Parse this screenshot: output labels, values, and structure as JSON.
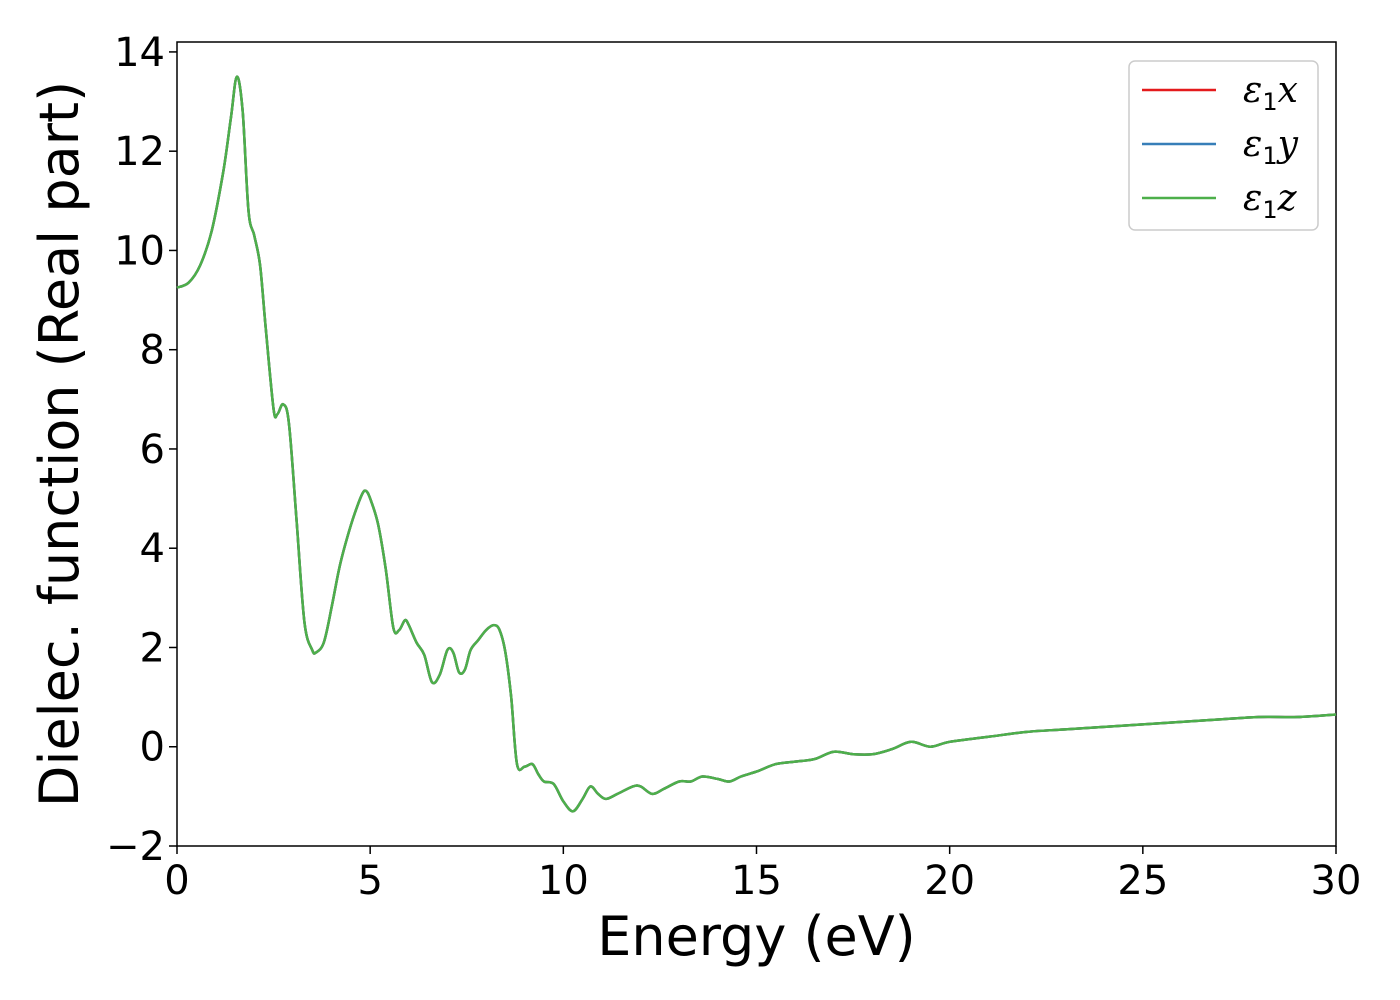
{
  "chart_data": {
    "type": "line",
    "xlabel": "Energy (eV)",
    "ylabel": "Dielec. function (Real part)",
    "xlim": [
      0,
      30
    ],
    "ylim": [
      -2,
      14.2
    ],
    "xticks": [
      0,
      5,
      10,
      15,
      20,
      25,
      30
    ],
    "yticks": [
      -2,
      0,
      2,
      4,
      6,
      8,
      10,
      12,
      14
    ],
    "ytick_labels": [
      "−2",
      "0",
      "2",
      "4",
      "6",
      "8",
      "10",
      "12",
      "14"
    ],
    "grid": false,
    "legend_position": "top-right",
    "series": [
      {
        "name": "ε₁x",
        "legend_base": "ε",
        "legend_sub": "1",
        "legend_var": "x",
        "color": "#e41a1c",
        "ref": "shared"
      },
      {
        "name": "ε₁y",
        "legend_base": "ε",
        "legend_sub": "1",
        "legend_var": "y",
        "color": "#377eb8",
        "ref": "shared"
      },
      {
        "name": "ε₁z",
        "legend_base": "ε",
        "legend_sub": "1",
        "legend_var": "z",
        "color": "#4daf4a",
        "ref": "shared"
      }
    ],
    "shared_values": {
      "x": [
        0,
        0.3,
        0.6,
        0.9,
        1.2,
        1.4,
        1.55,
        1.7,
        1.85,
        2.0,
        2.15,
        2.3,
        2.5,
        2.6,
        2.75,
        2.9,
        3.1,
        3.3,
        3.5,
        3.6,
        3.8,
        4.0,
        4.2,
        4.4,
        4.6,
        4.8,
        4.9,
        5.0,
        5.2,
        5.4,
        5.6,
        5.75,
        5.9,
        6.0,
        6.2,
        6.4,
        6.6,
        6.8,
        7.0,
        7.15,
        7.3,
        7.45,
        7.6,
        7.8,
        8.0,
        8.2,
        8.35,
        8.5,
        8.65,
        8.8,
        9.0,
        9.2,
        9.35,
        9.5,
        9.75,
        10.0,
        10.25,
        10.5,
        10.7,
        10.9,
        11.1,
        11.4,
        11.8,
        12.0,
        12.3,
        12.6,
        13.0,
        13.3,
        13.6,
        14.0,
        14.3,
        14.6,
        15.0,
        15.5,
        16.0,
        16.5,
        17.0,
        17.5,
        18.0,
        18.5,
        19.0,
        19.5,
        20.0,
        21.0,
        22.0,
        23.0,
        24.0,
        25.0,
        26.0,
        27.0,
        28.0,
        29.0,
        30.0
      ],
      "y": [
        9.25,
        9.35,
        9.7,
        10.4,
        11.6,
        12.7,
        13.5,
        12.8,
        10.8,
        10.3,
        9.7,
        8.4,
        6.8,
        6.7,
        6.9,
        6.5,
        4.5,
        2.5,
        1.95,
        1.9,
        2.1,
        2.8,
        3.6,
        4.2,
        4.7,
        5.1,
        5.15,
        5.0,
        4.5,
        3.6,
        2.4,
        2.35,
        2.55,
        2.45,
        2.1,
        1.85,
        1.3,
        1.45,
        1.95,
        1.9,
        1.5,
        1.55,
        1.95,
        2.15,
        2.35,
        2.45,
        2.35,
        1.9,
        1.0,
        -0.35,
        -0.4,
        -0.35,
        -0.55,
        -0.7,
        -0.75,
        -1.1,
        -1.3,
        -1.05,
        -0.8,
        -0.95,
        -1.05,
        -0.95,
        -0.8,
        -0.8,
        -0.95,
        -0.85,
        -0.7,
        -0.7,
        -0.6,
        -0.65,
        -0.7,
        -0.6,
        -0.5,
        -0.35,
        -0.3,
        -0.25,
        -0.1,
        -0.15,
        -0.15,
        -0.05,
        0.1,
        0.0,
        0.1,
        0.2,
        0.3,
        0.35,
        0.4,
        0.45,
        0.5,
        0.55,
        0.6,
        0.6,
        0.65
      ]
    }
  }
}
